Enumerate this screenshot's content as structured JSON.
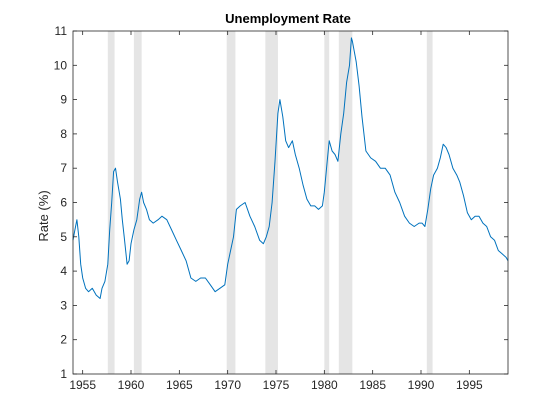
{
  "chart_data": {
    "type": "line",
    "title": "Unemployment Rate",
    "xlabel": "",
    "ylabel": "Rate (%)",
    "xlim": [
      1954.0,
      1999.0
    ],
    "ylim": [
      1,
      11
    ],
    "x_ticks": [
      1955,
      1960,
      1965,
      1970,
      1975,
      1980,
      1985,
      1990,
      1995
    ],
    "y_ticks": [
      1,
      2,
      3,
      4,
      5,
      6,
      7,
      8,
      9,
      10,
      11
    ],
    "grid": false,
    "line_color": "#0072BD",
    "shade_color": "#E5E5E5",
    "recessions": [
      [
        1957.6,
        1958.3
      ],
      [
        1960.3,
        1961.1
      ],
      [
        1969.9,
        1970.8
      ],
      [
        1973.9,
        1975.2
      ],
      [
        1980.0,
        1980.5
      ],
      [
        1981.5,
        1982.9
      ],
      [
        1990.6,
        1991.2
      ]
    ],
    "series": [
      {
        "x": [
          1954.0,
          1954.2,
          1954.4,
          1954.6,
          1954.8,
          1955.0,
          1955.3,
          1955.6,
          1956.0,
          1956.4,
          1956.8,
          1957.0,
          1957.3,
          1957.6,
          1957.8,
          1958.0,
          1958.2,
          1958.4,
          1958.6,
          1958.9,
          1959.1,
          1959.3,
          1959.6,
          1959.8,
          1960.0,
          1960.3,
          1960.6,
          1960.9,
          1961.1,
          1961.3,
          1961.6,
          1961.9,
          1962.3,
          1962.8,
          1963.2,
          1963.7,
          1964.2,
          1964.7,
          1965.2,
          1965.7,
          1966.2,
          1966.7,
          1967.2,
          1967.7,
          1968.2,
          1968.7,
          1969.2,
          1969.7,
          1970.0,
          1970.3,
          1970.6,
          1970.9,
          1971.3,
          1971.8,
          1972.3,
          1972.8,
          1973.3,
          1973.7,
          1974.0,
          1974.3,
          1974.6,
          1974.9,
          1975.2,
          1975.4,
          1975.7,
          1976.0,
          1976.3,
          1976.7,
          1977.0,
          1977.4,
          1977.8,
          1978.2,
          1978.6,
          1979.0,
          1979.4,
          1979.8,
          1980.0,
          1980.3,
          1980.5,
          1980.8,
          1981.1,
          1981.4,
          1981.7,
          1982.0,
          1982.3,
          1982.6,
          1982.8,
          1982.9,
          1983.1,
          1983.3,
          1983.6,
          1983.9,
          1984.3,
          1984.8,
          1985.3,
          1985.8,
          1986.3,
          1986.8,
          1987.3,
          1987.8,
          1988.3,
          1988.8,
          1989.3,
          1989.8,
          1990.1,
          1990.4,
          1990.7,
          1991.0,
          1991.3,
          1991.7,
          1992.0,
          1992.3,
          1992.6,
          1992.9,
          1993.3,
          1993.7,
          1994.0,
          1994.4,
          1994.8,
          1995.2,
          1995.6,
          1996.0,
          1996.4,
          1996.8,
          1997.2,
          1997.6,
          1998.0,
          1998.4,
          1998.8,
          1999.0
        ],
        "values": [
          4.9,
          5.2,
          5.5,
          5.0,
          4.2,
          3.8,
          3.5,
          3.4,
          3.5,
          3.3,
          3.2,
          3.5,
          3.7,
          4.2,
          5.2,
          6.0,
          6.9,
          7.0,
          6.6,
          6.1,
          5.5,
          5.0,
          4.2,
          4.3,
          4.8,
          5.2,
          5.5,
          6.1,
          6.3,
          6.0,
          5.8,
          5.5,
          5.4,
          5.5,
          5.6,
          5.5,
          5.2,
          4.9,
          4.6,
          4.3,
          3.8,
          3.7,
          3.8,
          3.8,
          3.6,
          3.4,
          3.5,
          3.6,
          4.2,
          4.6,
          5.0,
          5.8,
          5.9,
          6.0,
          5.6,
          5.3,
          4.9,
          4.8,
          5.0,
          5.3,
          6.0,
          7.2,
          8.6,
          9.0,
          8.5,
          7.8,
          7.6,
          7.8,
          7.4,
          7.0,
          6.5,
          6.1,
          5.9,
          5.9,
          5.8,
          5.9,
          6.3,
          7.2,
          7.8,
          7.5,
          7.4,
          7.2,
          8.0,
          8.6,
          9.5,
          10.0,
          10.8,
          10.7,
          10.4,
          10.1,
          9.4,
          8.5,
          7.5,
          7.3,
          7.2,
          7.0,
          7.0,
          6.8,
          6.3,
          6.0,
          5.6,
          5.4,
          5.3,
          5.4,
          5.4,
          5.3,
          5.8,
          6.4,
          6.8,
          7.0,
          7.3,
          7.7,
          7.6,
          7.4,
          7.0,
          6.8,
          6.6,
          6.2,
          5.7,
          5.5,
          5.6,
          5.6,
          5.4,
          5.3,
          5.0,
          4.9,
          4.6,
          4.5,
          4.4,
          4.3
        ]
      }
    ]
  }
}
